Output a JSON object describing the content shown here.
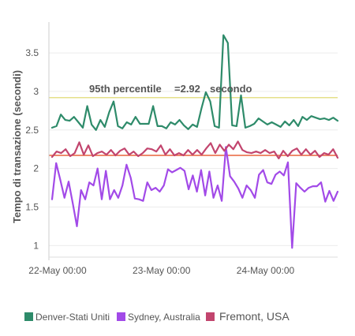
{
  "chart_data": {
    "type": "line",
    "xlabel": "",
    "ylabel": "Tempo di transazione (secondi)",
    "ylim": [
      0.85,
      3.9
    ],
    "yticks": [
      "1",
      "1.5",
      "2",
      "2.5",
      "3",
      "3.5"
    ],
    "ytick_values": [
      1,
      1.5,
      2,
      2.5,
      3,
      3.5
    ],
    "xticks": [
      "22-May 00:00",
      "23-May 00:00",
      "24-May 00:00"
    ],
    "xtick_values": [
      3,
      39,
      75
    ],
    "xlim": [
      0,
      100
    ],
    "grid": "horizontal",
    "legend_position": "bottom",
    "reference_lines": [
      {
        "value": 2.92,
        "color": "#e6e08a",
        "label_prefix": "95th percentile",
        "label_value": "=2.92",
        "label_unit": "secondo"
      },
      {
        "value": 2.17,
        "color": "#e8643c"
      }
    ],
    "series": [
      {
        "name": "Denver-Stati Uniti",
        "color": "#2e8b6a",
        "values": [
          2.53,
          2.55,
          2.7,
          2.63,
          2.62,
          2.67,
          2.6,
          2.53,
          2.81,
          2.57,
          2.5,
          2.63,
          2.54,
          2.73,
          2.87,
          2.55,
          2.52,
          2.6,
          2.57,
          2.67,
          2.58,
          2.58,
          2.58,
          2.81,
          2.55,
          2.55,
          2.52,
          2.6,
          2.57,
          2.63,
          2.56,
          2.51,
          2.57,
          2.54,
          2.78,
          2.99,
          2.87,
          2.55,
          2.53,
          3.73,
          3.63,
          2.56,
          2.55,
          2.95,
          2.53,
          2.55,
          2.58,
          2.65,
          2.61,
          2.57,
          2.6,
          2.57,
          2.54,
          2.61,
          2.56,
          2.63,
          2.55,
          2.67,
          2.63,
          2.68,
          2.66,
          2.64,
          2.65,
          2.63,
          2.66,
          2.62
        ]
      },
      {
        "name": "Sydney, Australia",
        "color": "#a24ae8",
        "values": [
          1.6,
          2.07,
          1.85,
          1.62,
          1.83,
          1.55,
          1.25,
          1.72,
          1.6,
          1.82,
          1.78,
          2.0,
          1.6,
          1.97,
          1.6,
          1.72,
          1.62,
          1.78,
          2.05,
          1.88,
          1.61,
          1.6,
          1.58,
          1.82,
          1.72,
          1.75,
          1.7,
          1.78,
          1.99,
          1.95,
          1.98,
          2.01,
          1.97,
          1.73,
          1.91,
          1.7,
          1.98,
          1.65,
          1.96,
          1.62,
          1.78,
          1.58,
          2.28,
          1.9,
          1.83,
          1.74,
          1.62,
          1.78,
          1.72,
          1.62,
          1.92,
          1.98,
          1.82,
          1.8,
          1.92,
          1.96,
          1.91,
          2.08,
          0.97,
          1.81,
          1.75,
          1.7,
          1.75,
          1.77,
          1.77,
          1.82,
          1.57,
          1.71,
          1.58,
          1.7
        ]
      },
      {
        "name": "Fremont, USA",
        "color": "#c2456e",
        "values": [
          2.15,
          2.22,
          2.2,
          2.25,
          2.16,
          2.2,
          2.34,
          2.18,
          2.3,
          2.16,
          2.2,
          2.22,
          2.18,
          2.24,
          2.17,
          2.23,
          2.26,
          2.18,
          2.22,
          2.16,
          2.2,
          2.26,
          2.25,
          2.22,
          2.3,
          2.18,
          2.25,
          2.17,
          2.2,
          2.17,
          2.24,
          2.18,
          2.24,
          2.18,
          2.26,
          2.33,
          2.2,
          2.31,
          2.23,
          2.31,
          2.25,
          2.35,
          2.24,
          2.21,
          2.2,
          2.22,
          2.2,
          2.24,
          2.2,
          2.22,
          2.13,
          2.23,
          2.16,
          2.23,
          2.26,
          2.18,
          2.25,
          2.18,
          2.23,
          2.15,
          2.2,
          2.18,
          2.25,
          2.14
        ]
      }
    ]
  }
}
